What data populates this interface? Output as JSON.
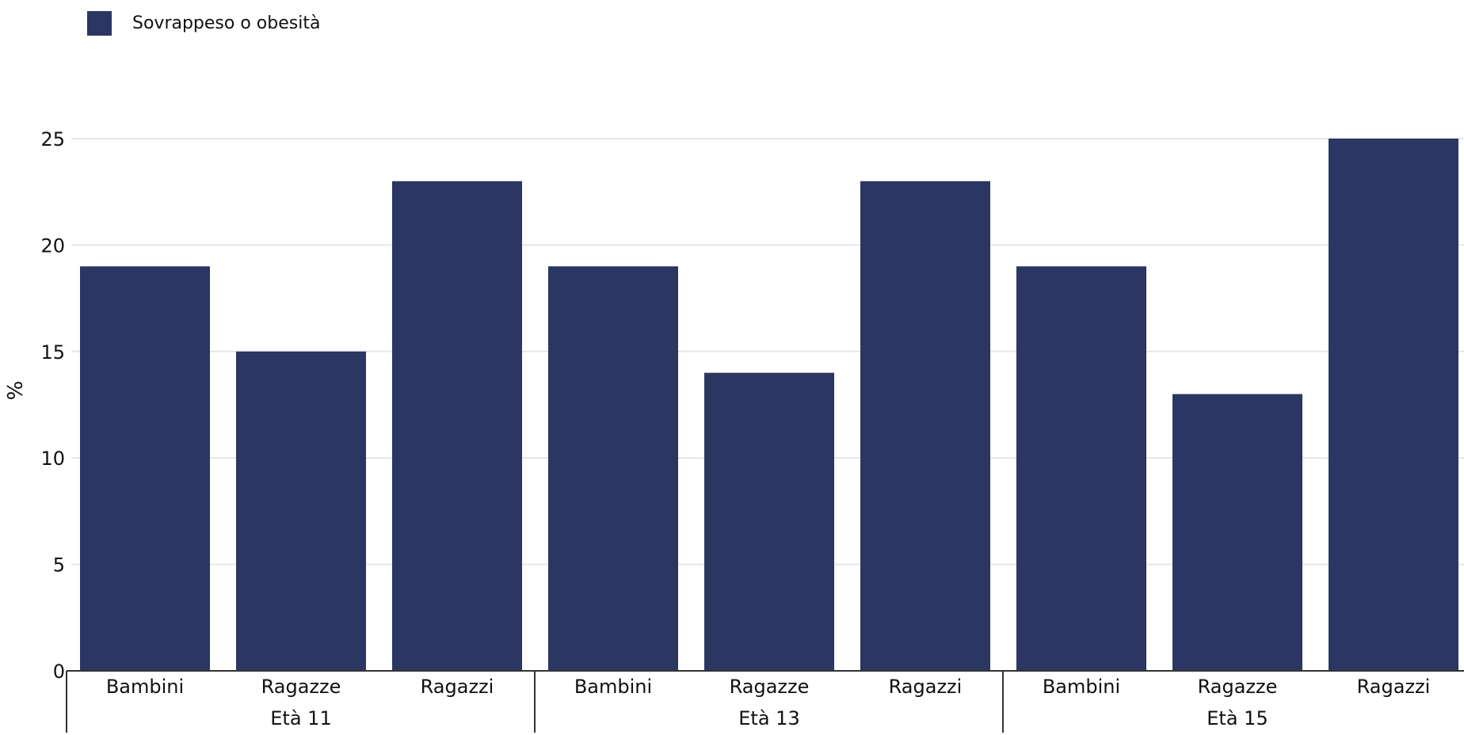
{
  "legend": {
    "label": "Sovrappeso o obesità"
  },
  "colors": {
    "bar": "#2b3663",
    "grid": "#e6e6e6",
    "axis": "#333333"
  },
  "chart_data": {
    "type": "bar",
    "title": "",
    "xlabel": "",
    "ylabel": "%",
    "ylim": [
      0,
      25
    ],
    "yticks": [
      0,
      5,
      10,
      15,
      20,
      25
    ],
    "grid": true,
    "legend_position": "top-left",
    "groups": [
      {
        "label": "Età 11",
        "categories": [
          "Bambini",
          "Ragazze",
          "Ragazzi"
        ],
        "values": [
          19,
          15,
          23
        ]
      },
      {
        "label": "Età 13",
        "categories": [
          "Bambini",
          "Ragazze",
          "Ragazzi"
        ],
        "values": [
          19,
          14,
          23
        ]
      },
      {
        "label": "Età 15",
        "categories": [
          "Bambini",
          "Ragazze",
          "Ragazzi"
        ],
        "values": [
          19,
          13,
          25
        ]
      }
    ],
    "series": [
      {
        "name": "Sovrappeso o obesità",
        "values": [
          19,
          15,
          23,
          19,
          14,
          23,
          19,
          13,
          25
        ]
      }
    ]
  }
}
